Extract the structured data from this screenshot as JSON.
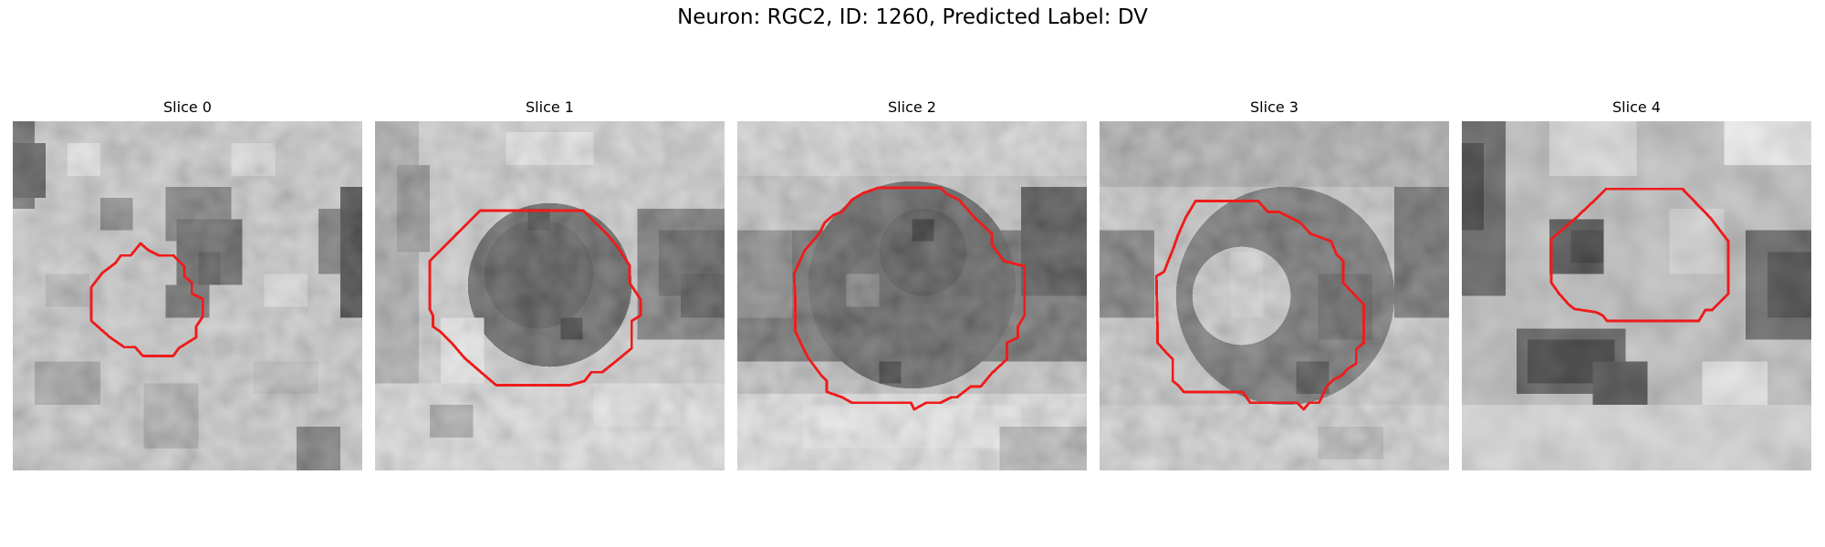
{
  "figure": {
    "title": "Neuron: RGC2, ID: 1260, Predicted Label: DV"
  },
  "panels": [
    {
      "title": "Slice 0"
    },
    {
      "title": "Slice 1"
    },
    {
      "title": "Slice 2"
    },
    {
      "title": "Slice 3"
    },
    {
      "title": "Slice 4"
    }
  ],
  "colors": {
    "contour": "#ee1c1c",
    "background": "#ffffff"
  }
}
